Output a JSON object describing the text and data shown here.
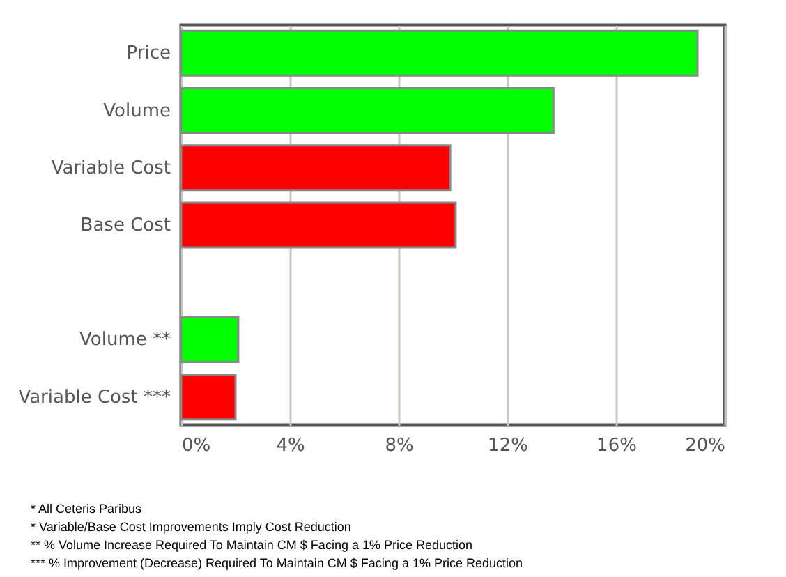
{
  "chart_data": {
    "type": "bar",
    "orientation": "horizontal",
    "categories": [
      "Price",
      "Volume",
      "Variable Cost",
      "Base Cost",
      null,
      "Volume **",
      "Variable Cost ***"
    ],
    "values": [
      19.0,
      13.7,
      9.9,
      10.1,
      null,
      2.1,
      2.0
    ],
    "colors": [
      "#00ff00",
      "#00ff00",
      "#ff0000",
      "#ff0000",
      null,
      "#00ff00",
      "#ff0000"
    ],
    "xlim": [
      0,
      20
    ],
    "xticks": [
      {
        "value": 0,
        "label": "0%"
      },
      {
        "value": 4,
        "label": "4%"
      },
      {
        "value": 8,
        "label": "8%"
      },
      {
        "value": 12,
        "label": "12%"
      },
      {
        "value": 16,
        "label": "16%"
      },
      {
        "value": 20,
        "label": "20%"
      }
    ],
    "grid": "x",
    "annotations": [
      "* All Ceteris Paribus",
      "* Variable/Base Cost Improvements Imply Cost Reduction",
      "** % Volume Increase Required To Maintain CM $ Facing a 1% Price Reduction",
      "*** % Improvement (Decrease) Required To Maintain CM $ Facing a 1% Price Reduction"
    ]
  }
}
